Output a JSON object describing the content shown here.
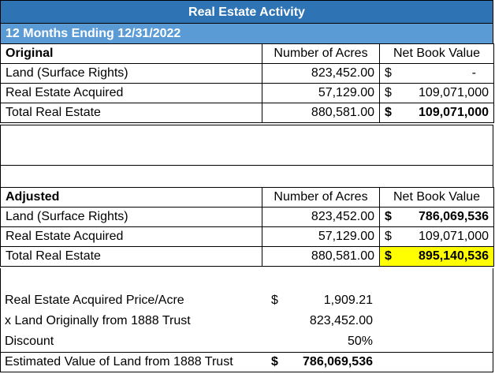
{
  "title": "Real Estate Activity",
  "period": "12 Months Ending  12/31/2022",
  "original": {
    "heading": "Original",
    "col_acres": "Number of Acres",
    "col_nbv": "Net Book Value",
    "rows": [
      {
        "label": "Land (Surface Rights)",
        "acres": "823,452.00",
        "dollar": "$",
        "nbv": "-"
      },
      {
        "label": "Real Estate Acquired",
        "acres": "57,129.00",
        "dollar": "$",
        "nbv": "109,071,000"
      },
      {
        "label": "Total Real Estate",
        "acres": "880,581.00",
        "dollar": "$",
        "nbv": "109,071,000"
      }
    ]
  },
  "adjusted": {
    "heading": "Adjusted",
    "col_acres": "Number of Acres",
    "col_nbv": "Net Book Value",
    "rows": [
      {
        "label": "Land (Surface Rights)",
        "acres": "823,452.00",
        "dollar": "$",
        "nbv": "786,069,536"
      },
      {
        "label": "Real Estate Acquired",
        "acres": "57,129.00",
        "dollar": "$",
        "nbv": "109,071,000"
      },
      {
        "label": "Total Real Estate",
        "acres": "880,581.00",
        "dollar": "$",
        "nbv": "895,140,536"
      }
    ]
  },
  "calc": {
    "rows": [
      {
        "label": "Real Estate Acquired Price/Acre",
        "dollar": "$",
        "value": "1,909.21"
      },
      {
        "label": "x Land Originally from 1888 Trust",
        "dollar": "",
        "value": "823,452.00"
      },
      {
        "label": "Discount",
        "dollar": "",
        "value": "50%"
      },
      {
        "label": "Estimated Value of Land from 1888 Trust",
        "dollar": "$",
        "value": "786,069,536"
      }
    ]
  },
  "colors": {
    "banner": "#2e74b5",
    "subbanner": "#5b9bd5",
    "highlight": "#ffff00"
  }
}
